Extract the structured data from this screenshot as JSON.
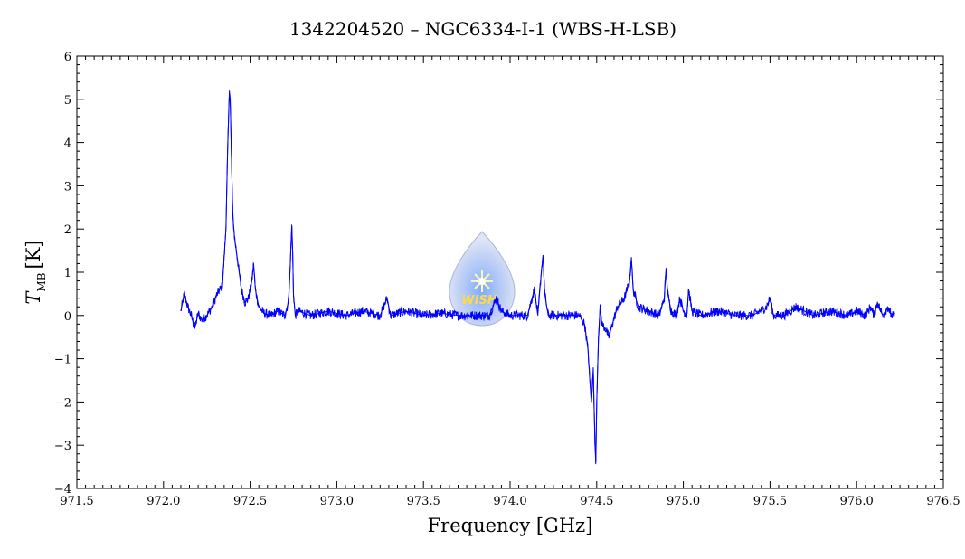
{
  "chart_data": {
    "type": "line",
    "title": "1342204520 – NGC6334-I-1 (WBS-H-LSB)",
    "xlabel": "Frequency [GHz]",
    "ylabel_main": "T",
    "ylabel_sub": "MB",
    "ylabel_unit": "[K]",
    "xlim": [
      971.5,
      976.5
    ],
    "ylim": [
      -4,
      6
    ],
    "xticks": [
      971.5,
      972.0,
      972.5,
      973.0,
      973.5,
      974.0,
      974.5,
      975.0,
      975.5,
      976.0,
      976.5
    ],
    "xtick_labels": [
      "971.5",
      "972.0",
      "972.5",
      "973.0",
      "973.5",
      "974.0",
      "974.5",
      "975.0",
      "975.5",
      "976.0",
      "976.5"
    ],
    "yticks": [
      -4,
      -3,
      -2,
      -1,
      0,
      1,
      2,
      3,
      4,
      5,
      6
    ],
    "ytick_labels": [
      "−4",
      "−3",
      "−2",
      "−1",
      "0",
      "1",
      "2",
      "3",
      "4",
      "5",
      "6"
    ],
    "grid": false,
    "line_color": "#0000ff",
    "series": [
      {
        "x": [
          972.1,
          972.12,
          972.14,
          972.16,
          972.18,
          972.2,
          972.22,
          972.25,
          972.28,
          972.31,
          972.34,
          972.36,
          972.37,
          972.38,
          972.385,
          972.39,
          972.4,
          972.41,
          972.43,
          972.45,
          972.47,
          972.49,
          972.51,
          972.52,
          972.53,
          972.55,
          972.58,
          972.62,
          972.66,
          972.7,
          972.72,
          972.73,
          972.74,
          972.745,
          972.75,
          972.76,
          972.78,
          972.85,
          972.95,
          973.05,
          973.15,
          973.25,
          973.29,
          973.3,
          973.31,
          973.4,
          973.5,
          973.6,
          973.7,
          973.8,
          973.88,
          973.92,
          973.95,
          974.0,
          974.05,
          974.1,
          974.12,
          974.14,
          974.16,
          974.18,
          974.19,
          974.2,
          974.22,
          974.25,
          974.3,
          974.35,
          974.4,
          974.43,
          974.45,
          974.46,
          974.47,
          974.48,
          974.49,
          974.495,
          974.5,
          974.51,
          974.52,
          974.53,
          974.55,
          974.57,
          974.59,
          974.62,
          974.66,
          974.69,
          974.7,
          974.71,
          974.74,
          974.8,
          974.86,
          974.89,
          974.9,
          974.91,
          974.93,
          974.96,
          974.98,
          975.0,
          975.02,
          975.03,
          975.05,
          975.1,
          975.2,
          975.3,
          975.4,
          975.48,
          975.5,
          975.52,
          975.58,
          975.65,
          975.75,
          975.85,
          975.95,
          976.0,
          976.05,
          976.08,
          976.1,
          976.12,
          976.15,
          976.18,
          976.2,
          976.22
        ],
        "y": [
          0.1,
          0.5,
          0.2,
          0.0,
          -0.3,
          0.05,
          -0.1,
          0.0,
          0.2,
          0.5,
          0.7,
          2.0,
          3.8,
          5.2,
          5.0,
          4.0,
          2.3,
          1.8,
          1.2,
          0.6,
          0.3,
          0.4,
          0.8,
          1.2,
          0.6,
          0.2,
          0.05,
          0.0,
          0.1,
          0.0,
          0.3,
          1.0,
          2.1,
          1.5,
          0.5,
          0.0,
          0.1,
          0.0,
          0.1,
          0.0,
          0.1,
          0.0,
          0.4,
          0.2,
          0.0,
          0.1,
          0.0,
          0.05,
          0.0,
          0.0,
          0.0,
          0.4,
          0.1,
          0.0,
          0.0,
          0.0,
          0.3,
          0.6,
          0.0,
          1.0,
          1.4,
          0.5,
          0.0,
          0.0,
          0.0,
          0.0,
          0.0,
          -0.2,
          -0.8,
          -1.5,
          -2.0,
          -1.2,
          -3.0,
          -3.4,
          -2.0,
          -0.5,
          0.2,
          -0.2,
          -0.3,
          -0.5,
          -0.2,
          0.2,
          0.4,
          0.8,
          1.35,
          0.6,
          0.2,
          0.1,
          0.0,
          0.4,
          1.1,
          0.5,
          0.1,
          0.0,
          0.4,
          0.1,
          0.0,
          0.6,
          0.1,
          0.0,
          0.1,
          0.0,
          0.0,
          0.2,
          0.4,
          0.0,
          0.0,
          0.2,
          0.0,
          0.1,
          0.0,
          0.1,
          0.0,
          0.2,
          0.0,
          0.3,
          0.0,
          0.2,
          0.0,
          0.0
        ]
      }
    ]
  }
}
